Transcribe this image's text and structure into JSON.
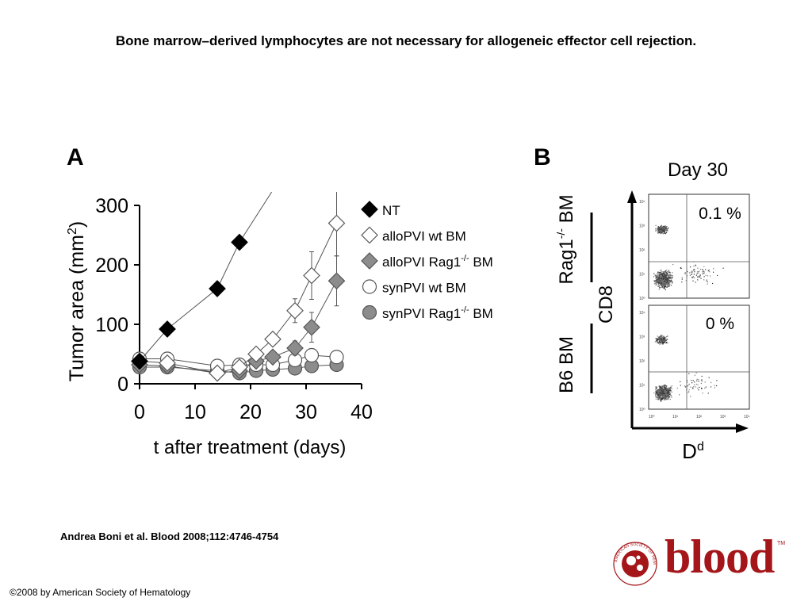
{
  "slide": {
    "title": "Bone marrow–derived lymphocytes are not necessary for allogeneic effector cell rejection.",
    "citation": "Andrea Boni et al. Blood 2008;112:4746-4754",
    "copyright": "©2008 by American Society of Hematology",
    "logo_text": "blood",
    "logo_tm": "TM",
    "logo_seal_text": "AMERICAN SOCIETY OF HEMATOLOGY"
  },
  "colors": {
    "NT": "#000000",
    "alloPVI_wt_BM": "#ffffff",
    "alloPVI_Rag1_BM": "#8c8c8c",
    "synPVI_wt_BM": "#ffffff",
    "synPVI_Rag1_BM": "#8c8c8c",
    "logo": "#a4161a"
  },
  "chart_data": [
    {
      "panel": "A",
      "type": "line",
      "ylabel": "Tumor area (mm2)",
      "xlabel": "t after treatment (days)",
      "xlim": [
        0,
        40
      ],
      "ylim": [
        0,
        300
      ],
      "xticks": [
        0,
        10,
        20,
        30,
        40
      ],
      "yticks": [
        0,
        100,
        200,
        300
      ],
      "legend_position": "right",
      "series": [
        {
          "name": "NT",
          "marker": "diamond",
          "fill": "#000000",
          "x": [
            0,
            5,
            14,
            18,
            25
          ],
          "y": [
            38,
            92,
            160,
            238,
            340
          ],
          "err": [
            8,
            8,
            9,
            10,
            0
          ]
        },
        {
          "name": "alloPVI wt BM",
          "marker": "diamond",
          "fill": "#ffffff",
          "x": [
            0,
            5,
            14,
            18,
            21,
            24,
            28,
            31,
            35.5
          ],
          "y": [
            38,
            35,
            18,
            28,
            50,
            75,
            123,
            182,
            270
          ],
          "err": [
            6,
            6,
            6,
            6,
            8,
            10,
            20,
            40,
            55
          ]
        },
        {
          "name": "alloPVI Rag1-/- BM",
          "marker": "diamond",
          "fill": "#8c8c8c",
          "x": [
            0,
            5,
            14,
            18,
            21,
            24,
            28,
            31,
            35.5
          ],
          "y": [
            32,
            30,
            18,
            22,
            38,
            45,
            60,
            95,
            173
          ],
          "err": [
            6,
            6,
            6,
            6,
            8,
            8,
            12,
            25,
            42
          ]
        },
        {
          "name": "synPVI wt BM",
          "marker": "circle",
          "fill": "#ffffff",
          "x": [
            0,
            5,
            14,
            18,
            21,
            24,
            28,
            31,
            35.5
          ],
          "y": [
            42,
            42,
            30,
            32,
            32,
            32,
            40,
            48,
            45
          ],
          "err": [
            6,
            6,
            6,
            6,
            6,
            6,
            6,
            8,
            8
          ]
        },
        {
          "name": "synPVI Rag1-/- BM",
          "marker": "circle",
          "fill": "#8c8c8c",
          "x": [
            0,
            5,
            14,
            18,
            21,
            24,
            28,
            31,
            35.5
          ],
          "y": [
            28,
            28,
            22,
            18,
            22,
            24,
            26,
            30,
            32
          ],
          "err": [
            5,
            5,
            5,
            5,
            5,
            5,
            5,
            6,
            6
          ]
        }
      ]
    },
    {
      "panel": "B",
      "type": "scatter",
      "title": "Day 30",
      "ylabel": "CD8",
      "xlabel": "Dd",
      "row_labels": [
        "Rag1-/- BM",
        "B6 BM"
      ],
      "quadrant_percent": [
        "0.1 %",
        "0 %"
      ],
      "tick_labels": [
        "10⁰",
        "10¹",
        "10²",
        "10³",
        "10⁴"
      ]
    }
  ]
}
